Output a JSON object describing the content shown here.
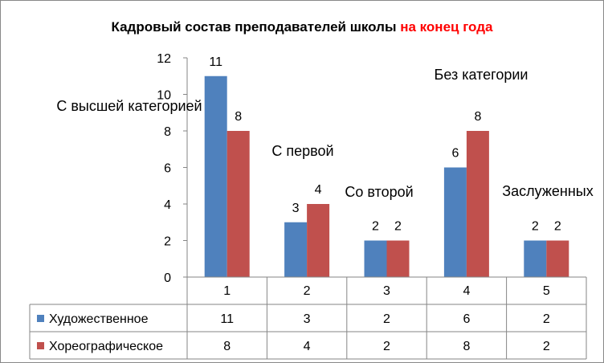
{
  "chart_data": {
    "type": "bar",
    "title_part1": "Кадровый состав преподавателей школы ",
    "title_part2": "на конец года",
    "title_color1": "#000000",
    "title_color2": "#ff0000",
    "categories": [
      "1",
      "2",
      "3",
      "4",
      "5"
    ],
    "series": [
      {
        "name": "Художественное",
        "values": [
          11,
          3,
          2,
          6,
          2
        ],
        "color": "#4f81bd"
      },
      {
        "name": "Хореографическое",
        "values": [
          8,
          4,
          2,
          8,
          2
        ],
        "color": "#c0504d"
      }
    ],
    "ylim": [
      0,
      12
    ],
    "yticks": [
      0,
      2,
      4,
      6,
      8,
      10,
      12
    ],
    "gridlines": false,
    "legend": "data-table",
    "annotations": [
      "С высшей категорией",
      "С первой",
      "Со второй",
      "Без категории",
      "Заслуженных"
    ]
  }
}
